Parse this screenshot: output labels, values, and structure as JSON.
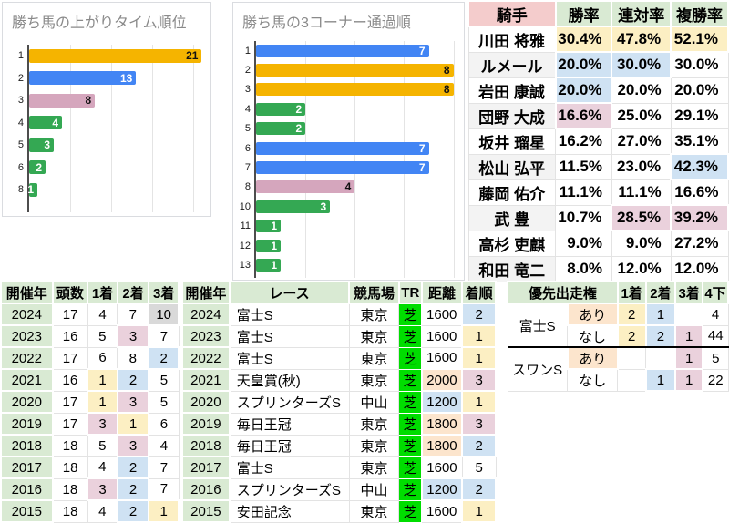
{
  "palette": {
    "bar_orange": "#F5B400",
    "bar_blue": "#4285F4",
    "bar_pink": "#D5A6BD",
    "bar_green": "#34A853",
    "hl_yellow": "#FCEFC3",
    "hl_blue": "#CFE2F3",
    "hl_pink": "#EAD1DC",
    "hl_orange": "#FCE5CD",
    "hl_gray": "#D9D9D9",
    "header_green": "#D9EAD3",
    "header_pink": "#F4CCCC",
    "turf_green": "#00DD00",
    "row_alt": "#F3F3F3"
  },
  "chart_data": [
    {
      "type": "bar",
      "title": "勝ち馬の上がりタイム順位",
      "categories": [
        "1",
        "2",
        "3",
        "4",
        "5",
        "6",
        "8"
      ],
      "values": [
        21,
        13,
        8,
        4,
        3,
        2,
        1
      ],
      "bar_colors": [
        "orange",
        "blue",
        "pink",
        "green",
        "green",
        "green",
        "green"
      ],
      "xlim": [
        0,
        21.5
      ],
      "grid_step": 5,
      "legend": "none",
      "orientation": "horizontal"
    },
    {
      "type": "bar",
      "title": "勝ち馬の3コーナー通過順",
      "categories": [
        "1",
        "2",
        "3",
        "4",
        "5",
        "6",
        "7",
        "8",
        "10",
        "11",
        "12",
        "13"
      ],
      "values": [
        7,
        8,
        8,
        2,
        2,
        7,
        7,
        4,
        3,
        1,
        1,
        1
      ],
      "bar_colors": [
        "blue",
        "orange",
        "orange",
        "green",
        "green",
        "blue",
        "blue",
        "pink",
        "green",
        "green",
        "green",
        "green"
      ],
      "xlim": [
        0,
        8.2
      ],
      "grid_step": 2,
      "legend": "none",
      "orientation": "horizontal"
    }
  ],
  "jockey_table": {
    "headers": [
      {
        "label": "騎手",
        "bg": "header_pink"
      },
      {
        "label": "勝率",
        "bg": "header_green"
      },
      {
        "label": "連対率",
        "bg": "header_green"
      },
      {
        "label": "複勝率",
        "bg": "header_green"
      }
    ],
    "rows": [
      {
        "name": "川田 将雅",
        "values": [
          "30.4%",
          "47.8%",
          "52.1%"
        ],
        "hl": [
          "yellow",
          "yellow",
          "yellow"
        ]
      },
      {
        "name": "ルメール",
        "values": [
          "20.0%",
          "30.0%",
          "30.0%"
        ],
        "hl": [
          "blue",
          "blue",
          ""
        ]
      },
      {
        "name": "岩田 康誠",
        "values": [
          "20.0%",
          "20.0%",
          "20.0%"
        ],
        "hl": [
          "blue",
          "",
          ""
        ]
      },
      {
        "name": "団野 大成",
        "values": [
          "16.6%",
          "25.0%",
          "29.1%"
        ],
        "hl": [
          "pink",
          "",
          ""
        ]
      },
      {
        "name": "坂井 瑠星",
        "values": [
          "16.2%",
          "27.0%",
          "35.1%"
        ],
        "hl": [
          "",
          "",
          ""
        ]
      },
      {
        "name": "松山 弘平",
        "values": [
          "11.5%",
          "23.0%",
          "42.3%"
        ],
        "hl": [
          "",
          "",
          "blue"
        ]
      },
      {
        "name": "藤岡 佑介",
        "values": [
          "11.1%",
          "11.1%",
          "16.6%"
        ],
        "hl": [
          "",
          "",
          ""
        ]
      },
      {
        "name": "武 豊",
        "values": [
          "10.7%",
          "28.5%",
          "39.2%"
        ],
        "hl": [
          "",
          "pink",
          "pink"
        ]
      },
      {
        "name": "高杉 吏麒",
        "values": [
          "9.0%",
          "9.0%",
          "27.2%"
        ],
        "hl": [
          "",
          "",
          ""
        ]
      },
      {
        "name": "和田 竜二",
        "values": [
          "8.0%",
          "12.0%",
          "12.0%"
        ],
        "hl": [
          "",
          "",
          ""
        ]
      }
    ]
  },
  "year_table": {
    "headers": [
      "開催年",
      "頭数",
      "1着",
      "2着",
      "3着"
    ],
    "rows": [
      {
        "year": "2024",
        "cells": [
          "17",
          "4",
          "7",
          "10"
        ],
        "hl": [
          "",
          "",
          "",
          "gray"
        ]
      },
      {
        "year": "2023",
        "cells": [
          "16",
          "5",
          "3",
          "7"
        ],
        "hl": [
          "",
          "",
          "pink",
          ""
        ]
      },
      {
        "year": "2022",
        "cells": [
          "17",
          "6",
          "8",
          "2"
        ],
        "hl": [
          "",
          "",
          "",
          "blue"
        ]
      },
      {
        "year": "2021",
        "cells": [
          "16",
          "1",
          "2",
          "5"
        ],
        "hl": [
          "",
          "yellow",
          "blue",
          ""
        ]
      },
      {
        "year": "2020",
        "cells": [
          "17",
          "1",
          "3",
          "5"
        ],
        "hl": [
          "",
          "yellow",
          "pink",
          ""
        ]
      },
      {
        "year": "2019",
        "cells": [
          "17",
          "3",
          "1",
          "6"
        ],
        "hl": [
          "",
          "pink",
          "yellow",
          ""
        ]
      },
      {
        "year": "2018",
        "cells": [
          "18",
          "5",
          "3",
          "4"
        ],
        "hl": [
          "",
          "",
          "pink",
          ""
        ]
      },
      {
        "year": "2017",
        "cells": [
          "18",
          "4",
          "2",
          "7"
        ],
        "hl": [
          "",
          "",
          "blue",
          ""
        ]
      },
      {
        "year": "2016",
        "cells": [
          "18",
          "3",
          "2",
          "7"
        ],
        "hl": [
          "",
          "pink",
          "blue",
          ""
        ]
      },
      {
        "year": "2015",
        "cells": [
          "18",
          "4",
          "2",
          "1"
        ],
        "hl": [
          "",
          "",
          "blue",
          "yellow"
        ]
      }
    ]
  },
  "race_table": {
    "headers": [
      "開催年",
      "レース",
      "競馬場",
      "TR",
      "距離",
      "着順"
    ],
    "rows": [
      {
        "year": "2024",
        "race": "富士S",
        "course": "東京",
        "track": "芝",
        "distance": "1600",
        "result": "2",
        "dist_hl": "",
        "res_hl": "blue"
      },
      {
        "year": "2023",
        "race": "富士S",
        "course": "東京",
        "track": "芝",
        "distance": "1600",
        "result": "1",
        "dist_hl": "",
        "res_hl": "yellow"
      },
      {
        "year": "2022",
        "race": "富士S",
        "course": "東京",
        "track": "芝",
        "distance": "1600",
        "result": "1",
        "dist_hl": "",
        "res_hl": "yellow"
      },
      {
        "year": "2021",
        "race": "天皇賞(秋)",
        "course": "東京",
        "track": "芝",
        "distance": "2000",
        "result": "3",
        "dist_hl": "orange",
        "res_hl": "pink"
      },
      {
        "year": "2020",
        "race": "スプリンターズS",
        "course": "中山",
        "track": "芝",
        "distance": "1200",
        "result": "1",
        "dist_hl": "blue",
        "res_hl": "yellow"
      },
      {
        "year": "2019",
        "race": "毎日王冠",
        "course": "東京",
        "track": "芝",
        "distance": "1800",
        "result": "3",
        "dist_hl": "orange",
        "res_hl": "pink"
      },
      {
        "year": "2018",
        "race": "毎日王冠",
        "course": "東京",
        "track": "芝",
        "distance": "1800",
        "result": "2",
        "dist_hl": "orange",
        "res_hl": "blue"
      },
      {
        "year": "2017",
        "race": "富士S",
        "course": "東京",
        "track": "芝",
        "distance": "1600",
        "result": "5",
        "dist_hl": "",
        "res_hl": ""
      },
      {
        "year": "2016",
        "race": "スプリンターズS",
        "course": "中山",
        "track": "芝",
        "distance": "1200",
        "result": "2",
        "dist_hl": "blue",
        "res_hl": "blue"
      },
      {
        "year": "2015",
        "race": "安田記念",
        "course": "東京",
        "track": "芝",
        "distance": "1600",
        "result": "1",
        "dist_hl": "",
        "res_hl": "yellow"
      }
    ]
  },
  "priority_table": {
    "header_label": "優先出走権",
    "headers": [
      "1着",
      "2着",
      "3着",
      "4下"
    ],
    "groups": [
      {
        "race": "富士S",
        "rows": [
          {
            "entry": "あり",
            "cells": [
              "2",
              "1",
              "",
              "4"
            ],
            "hl": [
              "yellow",
              "blue",
              "",
              ""
            ]
          },
          {
            "entry": "なし",
            "cells": [
              "2",
              "2",
              "1",
              "44"
            ],
            "hl": [
              "yellow",
              "blue",
              "pink",
              ""
            ]
          }
        ]
      },
      {
        "race": "スワンS",
        "rows": [
          {
            "entry": "あり",
            "cells": [
              "",
              "",
              "1",
              "5"
            ],
            "hl": [
              "",
              "",
              "pink",
              ""
            ]
          },
          {
            "entry": "なし",
            "cells": [
              "",
              "1",
              "1",
              "22"
            ],
            "hl": [
              "",
              "blue",
              "pink",
              ""
            ]
          }
        ]
      }
    ]
  }
}
